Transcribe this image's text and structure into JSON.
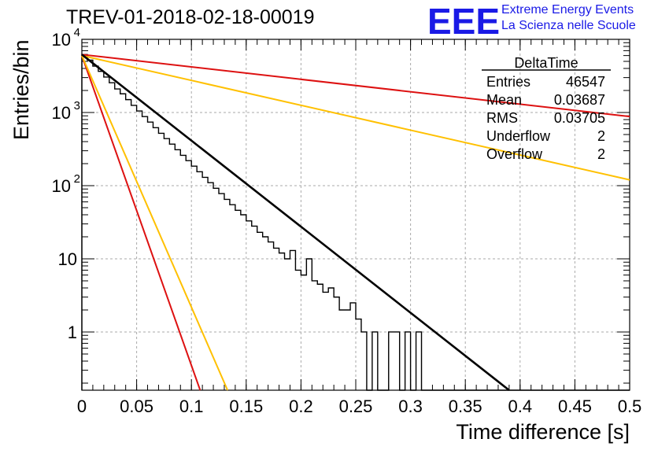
{
  "title": "TREV-01-2018-02-18-00019",
  "logo": {
    "mark": "EEE",
    "line1": "Extreme Energy Events",
    "line2": "La Scienza nelle Scuole",
    "color": "#1a1ae6"
  },
  "stats_box": {
    "title": "DeltaTime",
    "rows": [
      {
        "label": "Entries",
        "value": "46547"
      },
      {
        "label": "Mean",
        "value": "0.03687"
      },
      {
        "label": "RMS",
        "value": "0.03705"
      },
      {
        "label": "Underflow",
        "value": "2"
      },
      {
        "label": "Overflow",
        "value": "2"
      }
    ]
  },
  "chart_data": {
    "type": "line",
    "title": "TREV-01-2018-02-18-00019",
    "xlabel": "Time difference [s]",
    "ylabel": "Entries/bin",
    "xlim": [
      0,
      0.5
    ],
    "ylim": [
      0.16,
      10000
    ],
    "y_scale": "log",
    "grid": true,
    "x_ticks": [
      "0",
      "0.05",
      "0.1",
      "0.15",
      "0.2",
      "0.25",
      "0.3",
      "0.35",
      "0.4",
      "0.45",
      "0.5"
    ],
    "y_ticks": [
      {
        "value": 1,
        "label": "1"
      },
      {
        "value": 10,
        "label": "10"
      },
      {
        "value": 100,
        "label": "10",
        "exp": "2"
      },
      {
        "value": 1000,
        "label": "10",
        "exp": "3"
      },
      {
        "value": 10000,
        "label": "10",
        "exp": "4"
      }
    ],
    "histogram": {
      "bin_width": 0.005,
      "color": "#000000",
      "counts": [
        6200,
        5200,
        4300,
        3650,
        3050,
        2550,
        2100,
        1800,
        1500,
        1250,
        1050,
        880,
        740,
        620,
        520,
        440,
        370,
        310,
        260,
        220,
        185,
        155,
        130,
        110,
        92,
        78,
        65,
        55,
        46,
        40,
        33,
        28,
        23,
        20,
        17,
        14,
        12,
        10,
        13,
        7,
        6,
        10,
        5,
        4.5,
        3.5,
        4,
        3,
        2,
        2,
        2.5,
        1.5,
        1,
        0,
        1,
        0,
        0,
        1,
        1,
        0,
        1,
        0,
        1,
        0,
        0,
        0,
        0,
        0,
        0,
        0,
        0,
        0,
        0,
        0,
        0,
        0,
        0,
        0,
        0,
        0,
        0,
        0,
        0,
        0,
        0,
        0,
        0,
        0,
        0,
        0,
        0,
        0,
        0,
        0,
        0,
        0,
        0,
        0,
        0,
        0,
        0
      ]
    },
    "series": [
      {
        "x": [
          0,
          0.108
        ],
        "y": [
          6000,
          0.16
        ],
        "color": "#dd1111"
      },
      {
        "x": [
          0,
          0.133
        ],
        "y": [
          6000,
          0.16
        ],
        "color": "#ffc000"
      },
      {
        "x": [
          0,
          0.5
        ],
        "y": [
          6000,
          120
        ],
        "color": "#ffc000"
      },
      {
        "x": [
          0,
          0.5
        ],
        "y": [
          6200,
          880
        ],
        "color": "#dd1111"
      },
      {
        "x": [
          0,
          0.39
        ],
        "y": [
          6200,
          0.16
        ],
        "color": "#000000"
      }
    ]
  }
}
